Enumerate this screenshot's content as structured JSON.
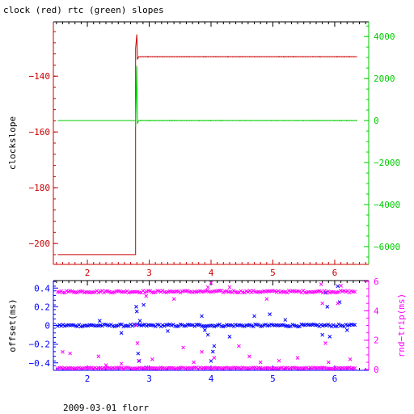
{
  "title": "clock (red) rtc (green) slopes",
  "footer": "2009-03-01 florr",
  "colors": {
    "red": "#cc0000",
    "green": "#00cc00",
    "blue": "#0000ff",
    "magenta": "#ff00ff",
    "axis": "#000000"
  },
  "chart_data": [
    {
      "type": "line",
      "title": "clock (red) rtc (green) slopes",
      "xlabel": "",
      "ylabel": "clockslope",
      "y2label": "",
      "xlim": [
        1.45,
        6.55
      ],
      "ylim": [
        -207.5,
        -120.5
      ],
      "y2lim": [
        -6850,
        4700
      ],
      "x_ticks": [
        2,
        3,
        4,
        5,
        6
      ],
      "y_ticks": [
        -140,
        -160,
        -180,
        -200
      ],
      "y2_ticks": [
        4000,
        2000,
        0,
        -2000,
        -4000,
        -6000
      ],
      "x_tick_color": "red",
      "series": [
        {
          "name": "clock",
          "axis": "left",
          "color": "red",
          "points": [
            [
              1.52,
              -204
            ],
            [
              2.78,
              -204
            ],
            [
              2.78,
              -130
            ],
            [
              2.8,
              -125
            ],
            [
              2.81,
              -134
            ],
            [
              2.83,
              -133
            ],
            [
              6.35,
              -133
            ]
          ]
        },
        {
          "name": "rtc",
          "axis": "right",
          "color": "green",
          "points": [
            [
              1.52,
              0
            ],
            [
              2.78,
              0
            ],
            [
              2.78,
              -300
            ],
            [
              2.8,
              2600
            ],
            [
              2.81,
              -150
            ],
            [
              2.83,
              0
            ],
            [
              6.35,
              0
            ]
          ]
        }
      ]
    },
    {
      "type": "scatter",
      "xlabel": "",
      "ylabel": "offset(ms)",
      "y2label": "rnd−trip(ms)",
      "xlim": [
        1.45,
        6.55
      ],
      "ylim": [
        -0.48,
        0.48
      ],
      "y2lim": [
        -0.05,
        6.05
      ],
      "x_ticks": [
        2,
        3,
        4,
        5,
        6
      ],
      "y_ticks": [
        "0.4",
        "0.2",
        "0",
        "−0.2",
        "−0.4"
      ],
      "y_tick_values": [
        0.4,
        0.2,
        0,
        -0.2,
        -0.4
      ],
      "y2_ticks": [
        6,
        4,
        2,
        0
      ],
      "x_tick_color": "blue",
      "series": [
        {
          "name": "offset",
          "axis": "left",
          "color": "blue",
          "band": {
            "x_from": 1.52,
            "x_to": 6.35,
            "center": 0.0,
            "spread": 0.012
          },
          "outliers": [
            [
              2.79,
              0.2
            ],
            [
              2.8,
              0.15
            ],
            [
              2.82,
              -0.3
            ],
            [
              2.84,
              -0.38
            ],
            [
              2.85,
              0.05
            ],
            [
              2.91,
              0.22
            ],
            [
              2.95,
              -0.45
            ],
            [
              3.85,
              0.1
            ],
            [
              3.9,
              -0.05
            ],
            [
              3.95,
              -0.1
            ],
            [
              4.0,
              -0.38
            ],
            [
              4.03,
              -0.28
            ],
            [
              4.05,
              -0.22
            ],
            [
              4.3,
              -0.12
            ],
            [
              4.7,
              0.1
            ],
            [
              4.95,
              0.12
            ],
            [
              5.8,
              -0.1
            ],
            [
              5.85,
              0.35
            ],
            [
              5.88,
              0.2
            ],
            [
              5.92,
              -0.12
            ],
            [
              6.05,
              0.42
            ],
            [
              6.08,
              0.25
            ],
            [
              6.2,
              -0.05
            ],
            [
              2.2,
              0.05
            ],
            [
              2.55,
              -0.08
            ],
            [
              3.3,
              -0.06
            ],
            [
              5.2,
              0.06
            ]
          ]
        },
        {
          "name": "rnd-trip",
          "axis": "right",
          "color": "magenta",
          "bands": [
            {
              "x_from": 1.52,
              "x_to": 6.35,
              "center": 5.3,
              "spread": 0.07
            },
            {
              "x_from": 1.52,
              "x_to": 6.35,
              "center": 0.1,
              "spread": 0.04
            }
          ],
          "outliers": [
            [
              1.6,
              1.2
            ],
            [
              1.72,
              1.1
            ],
            [
              2.18,
              0.9
            ],
            [
              2.55,
              0.4
            ],
            [
              2.79,
              3.0
            ],
            [
              2.81,
              1.8
            ],
            [
              2.83,
              0.6
            ],
            [
              2.95,
              5.0
            ],
            [
              3.05,
              0.7
            ],
            [
              3.4,
              4.8
            ],
            [
              3.55,
              1.5
            ],
            [
              3.72,
              0.5
            ],
            [
              3.85,
              1.2
            ],
            [
              3.95,
              5.6
            ],
            [
              4.0,
              5.9
            ],
            [
              4.05,
              0.8
            ],
            [
              4.3,
              5.6
            ],
            [
              4.45,
              1.6
            ],
            [
              4.62,
              0.9
            ],
            [
              4.9,
              4.8
            ],
            [
              5.1,
              0.6
            ],
            [
              5.4,
              0.8
            ],
            [
              5.78,
              5.8
            ],
            [
              5.8,
              4.5
            ],
            [
              5.85,
              1.8
            ],
            [
              5.9,
              0.5
            ],
            [
              6.05,
              4.5
            ],
            [
              6.1,
              5.7
            ],
            [
              6.25,
              0.7
            ],
            [
              2.3,
              0.3
            ],
            [
              4.8,
              0.5
            ]
          ]
        }
      ]
    }
  ]
}
